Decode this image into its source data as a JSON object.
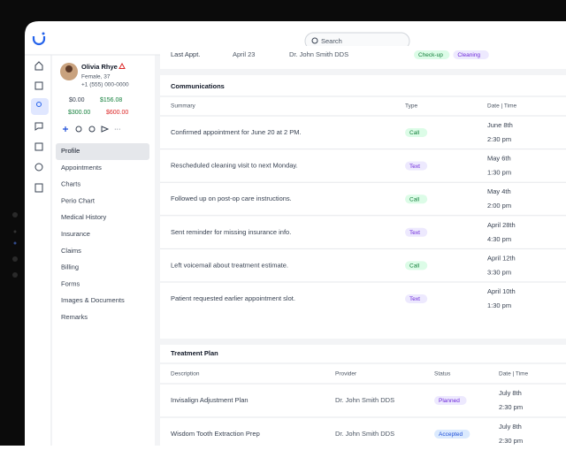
{
  "search_placeholder": "Search",
  "patient": {
    "name": "Olivia Rhye",
    "details": "Female, 37",
    "phone": "+1 (555) 000-0000",
    "balances": [
      "$0.00",
      "$156.08",
      "$300.00",
      "$600.00"
    ]
  },
  "nav": [
    "Profile",
    "Appointments",
    "Charts",
    "Perio Chart",
    "Medical History",
    "Insurance",
    "Claims",
    "Billing",
    "Forms",
    "Images & Documents",
    "Remarks"
  ],
  "last_appt": {
    "label": "Last Appt.",
    "date": "April 23",
    "provider": "Dr. John Smith DDS",
    "tags": [
      "Check-up",
      "Cleaning"
    ]
  },
  "communications": {
    "title": "Communications",
    "columns": [
      "Summary",
      "Type",
      "Date | Time"
    ],
    "rows": [
      {
        "summary": "Confirmed appointment for June 20 at 2 PM.",
        "type": "Call",
        "date": "June 8th",
        "time": "2:30 pm"
      },
      {
        "summary": "Rescheduled cleaning visit to next Monday.",
        "type": "Text",
        "date": "May 6th",
        "time": "1:30 pm"
      },
      {
        "summary": "Followed up on post-op care instructions.",
        "type": "Call",
        "date": "May 4th",
        "time": "2:00 pm"
      },
      {
        "summary": "Sent reminder for missing insurance info.",
        "type": "Text",
        "date": "April 28th",
        "time": "4:30 pm"
      },
      {
        "summary": "Left voicemail about treatment estimate.",
        "type": "Call",
        "date": "April 12th",
        "time": "3:30 pm"
      },
      {
        "summary": "Patient requested earlier appointment slot.",
        "type": "Text",
        "date": "April 10th",
        "time": "1:30 pm"
      }
    ]
  },
  "treatment_plan": {
    "title": "Treatment Plan",
    "columns": [
      "Description",
      "Provider",
      "Status",
      "Date | Time"
    ],
    "rows": [
      {
        "description": "Invisalign Adjustment Plan",
        "provider": "Dr. John Smith DDS",
        "status": "Planned",
        "date": "July 8th",
        "time": "2:30 pm"
      },
      {
        "description": "Wisdom Tooth Extraction Prep",
        "provider": "Dr. John Smith DDS",
        "status": "Accepted",
        "date": "July 8th",
        "time": "2:30 pm"
      }
    ]
  }
}
